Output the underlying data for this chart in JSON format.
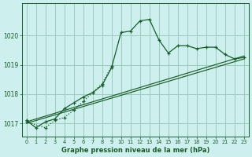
{
  "title": "Graphe pression niveau de la mer (hPa)",
  "bg_color": "#cdf0ee",
  "grid_color": "#99ccbb",
  "line_color": "#1a5c2a",
  "xlim": [
    -0.5,
    23.5
  ],
  "ylim": [
    1016.55,
    1021.1
  ],
  "yticks": [
    1017,
    1018,
    1019,
    1020
  ],
  "xticks": [
    0,
    1,
    2,
    3,
    4,
    5,
    6,
    7,
    8,
    9,
    10,
    11,
    12,
    13,
    14,
    15,
    16,
    17,
    18,
    19,
    20,
    21,
    22,
    23
  ],
  "line1_x": [
    0,
    1,
    2,
    3,
    4,
    5,
    6,
    7,
    8,
    9,
    10,
    11,
    12,
    13,
    14,
    15,
    16,
    17,
    18,
    19,
    20,
    21,
    22,
    23
  ],
  "line1_y": [
    1017.1,
    1016.85,
    1017.05,
    1017.15,
    1017.5,
    1017.7,
    1017.9,
    1018.05,
    1018.3,
    1018.9,
    1020.1,
    1020.15,
    1020.5,
    1020.55,
    1019.85,
    1019.4,
    1019.65,
    1019.65,
    1019.55,
    1019.6,
    1019.6,
    1019.35,
    1019.2,
    1019.25
  ],
  "line2_x": [
    0,
    2,
    3,
    4,
    5,
    6,
    7,
    8,
    9
  ],
  "line2_y": [
    1017.05,
    1016.85,
    1017.1,
    1017.2,
    1017.45,
    1017.75,
    1018.05,
    1018.35,
    1018.95
  ],
  "line3_x": [
    0,
    23
  ],
  "line3_y": [
    1017.0,
    1019.2
  ],
  "line4_x": [
    0,
    23
  ],
  "line4_y": [
    1017.05,
    1019.3
  ]
}
